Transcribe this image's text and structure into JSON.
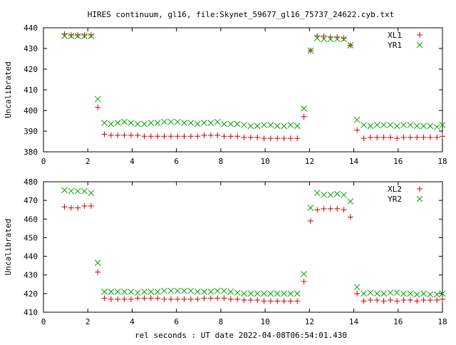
{
  "title": "HIRES continuum, gl16, file:Skynet_59677_gl16_75737_24622.cyb.txt",
  "xlabel": "rel seconds : UT date 2022-04-08T06:54:01.430",
  "colors": {
    "xl": "#d00000",
    "yr": "#00a000"
  },
  "chart_data": [
    {
      "type": "scatter",
      "ylabel": "Uncalibrated",
      "xlim": [
        0,
        18
      ],
      "ylim": [
        380,
        440
      ],
      "xticks": [
        0,
        2,
        4,
        6,
        8,
        10,
        12,
        14,
        16,
        18
      ],
      "yticks": [
        380,
        390,
        400,
        410,
        420,
        430,
        440
      ],
      "legend_position": "top-right",
      "series": [
        {
          "name": "XL1",
          "marker": "plus",
          "color": "#d00000",
          "points": [
            [
              0.95,
              437
            ],
            [
              1.25,
              436.5
            ],
            [
              1.55,
              436.5
            ],
            [
              1.85,
              436.5
            ],
            [
              2.15,
              436.5
            ],
            [
              2.45,
              401.5
            ],
            [
              2.75,
              388.5
            ],
            [
              3.05,
              388
            ],
            [
              3.35,
              388
            ],
            [
              3.65,
              388
            ],
            [
              3.95,
              388
            ],
            [
              4.25,
              388
            ],
            [
              4.55,
              387.5
            ],
            [
              4.85,
              387.5
            ],
            [
              5.15,
              387.5
            ],
            [
              5.45,
              387.5
            ],
            [
              5.75,
              387.5
            ],
            [
              6.05,
              387.5
            ],
            [
              6.35,
              387.5
            ],
            [
              6.65,
              387.5
            ],
            [
              6.95,
              387.5
            ],
            [
              7.25,
              388
            ],
            [
              7.55,
              388
            ],
            [
              7.85,
              388
            ],
            [
              8.15,
              387.5
            ],
            [
              8.45,
              387.5
            ],
            [
              8.75,
              387.5
            ],
            [
              9.05,
              387
            ],
            [
              9.35,
              387
            ],
            [
              9.65,
              387
            ],
            [
              9.95,
              386.5
            ],
            [
              10.25,
              386.5
            ],
            [
              10.55,
              386.5
            ],
            [
              10.85,
              386.5
            ],
            [
              11.15,
              386.5
            ],
            [
              11.45,
              386.5
            ],
            [
              11.75,
              397
            ],
            [
              12.05,
              429
            ],
            [
              12.35,
              436
            ],
            [
              12.65,
              436
            ],
            [
              12.95,
              435.5
            ],
            [
              13.25,
              435.5
            ],
            [
              13.55,
              435
            ],
            [
              13.85,
              431.5
            ],
            [
              14.15,
              390.5
            ],
            [
              14.45,
              386.5
            ],
            [
              14.75,
              387
            ],
            [
              15.05,
              387
            ],
            [
              15.35,
              387
            ],
            [
              15.65,
              387
            ],
            [
              15.95,
              386.5
            ],
            [
              16.25,
              387
            ],
            [
              16.55,
              387
            ],
            [
              16.85,
              387
            ],
            [
              17.15,
              387
            ],
            [
              17.45,
              387
            ],
            [
              17.75,
              387
            ],
            [
              18.0,
              387.5
            ]
          ]
        },
        {
          "name": "YR1",
          "marker": "cross",
          "color": "#00a000",
          "points": [
            [
              0.95,
              436
            ],
            [
              1.25,
              436
            ],
            [
              1.55,
              436
            ],
            [
              1.85,
              436
            ],
            [
              2.15,
              436
            ],
            [
              2.45,
              405.5
            ],
            [
              2.75,
              394
            ],
            [
              3.05,
              393.5
            ],
            [
              3.35,
              394
            ],
            [
              3.65,
              394.5
            ],
            [
              3.95,
              394
            ],
            [
              4.25,
              393.5
            ],
            [
              4.55,
              393.5
            ],
            [
              4.85,
              394
            ],
            [
              5.15,
              394
            ],
            [
              5.45,
              394.5
            ],
            [
              5.75,
              394.5
            ],
            [
              6.05,
              394.5
            ],
            [
              6.35,
              394
            ],
            [
              6.65,
              394
            ],
            [
              6.95,
              393.5
            ],
            [
              7.25,
              394
            ],
            [
              7.55,
              394
            ],
            [
              7.85,
              394.5
            ],
            [
              8.15,
              393.5
            ],
            [
              8.45,
              393.5
            ],
            [
              8.75,
              393.5
            ],
            [
              9.05,
              393
            ],
            [
              9.35,
              392.5
            ],
            [
              9.65,
              392.5
            ],
            [
              9.95,
              393
            ],
            [
              10.25,
              393
            ],
            [
              10.55,
              392.5
            ],
            [
              10.85,
              392.5
            ],
            [
              11.15,
              393
            ],
            [
              11.45,
              392.5
            ],
            [
              11.75,
              401
            ],
            [
              12.05,
              429
            ],
            [
              12.35,
              435
            ],
            [
              12.65,
              434.5
            ],
            [
              12.95,
              434.5
            ],
            [
              13.25,
              434.5
            ],
            [
              13.55,
              434.5
            ],
            [
              13.85,
              431.5
            ],
            [
              14.15,
              395.5
            ],
            [
              14.45,
              393
            ],
            [
              14.75,
              392.5
            ],
            [
              15.05,
              393
            ],
            [
              15.35,
              393
            ],
            [
              15.65,
              393
            ],
            [
              15.95,
              392.5
            ],
            [
              16.25,
              393
            ],
            [
              16.55,
              393
            ],
            [
              16.85,
              392.5
            ],
            [
              17.15,
              392.5
            ],
            [
              17.45,
              392.5
            ],
            [
              17.75,
              392
            ],
            [
              18.0,
              393
            ]
          ]
        }
      ]
    },
    {
      "type": "scatter",
      "ylabel": "Uncalibrated",
      "xlim": [
        0,
        18
      ],
      "ylim": [
        410,
        480
      ],
      "xticks": [
        0,
        2,
        4,
        6,
        8,
        10,
        12,
        14,
        16,
        18
      ],
      "yticks": [
        410,
        420,
        430,
        440,
        450,
        460,
        470,
        480
      ],
      "legend_position": "top-right",
      "series": [
        {
          "name": "XL2",
          "marker": "plus",
          "color": "#d00000",
          "points": [
            [
              0.95,
              466.5
            ],
            [
              1.25,
              466
            ],
            [
              1.55,
              466
            ],
            [
              1.85,
              467
            ],
            [
              2.15,
              467
            ],
            [
              2.45,
              431.5
            ],
            [
              2.75,
              417.5
            ],
            [
              3.05,
              417
            ],
            [
              3.35,
              417
            ],
            [
              3.65,
              417
            ],
            [
              3.95,
              417
            ],
            [
              4.25,
              417.5
            ],
            [
              4.55,
              417.5
            ],
            [
              4.85,
              417.5
            ],
            [
              5.15,
              417.5
            ],
            [
              5.45,
              417
            ],
            [
              5.75,
              417
            ],
            [
              6.05,
              417
            ],
            [
              6.35,
              417
            ],
            [
              6.65,
              417
            ],
            [
              6.95,
              417
            ],
            [
              7.25,
              417.5
            ],
            [
              7.55,
              417.5
            ],
            [
              7.85,
              417.5
            ],
            [
              8.15,
              417.5
            ],
            [
              8.45,
              417
            ],
            [
              8.75,
              417
            ],
            [
              9.05,
              416.5
            ],
            [
              9.35,
              416.5
            ],
            [
              9.65,
              416.5
            ],
            [
              9.95,
              416
            ],
            [
              10.25,
              416
            ],
            [
              10.55,
              416
            ],
            [
              10.85,
              416
            ],
            [
              11.15,
              416
            ],
            [
              11.45,
              416
            ],
            [
              11.75,
              426.5
            ],
            [
              12.05,
              459
            ],
            [
              12.35,
              465
            ],
            [
              12.65,
              465.5
            ],
            [
              12.95,
              465.5
            ],
            [
              13.25,
              465.5
            ],
            [
              13.55,
              465
            ],
            [
              13.85,
              461
            ],
            [
              14.15,
              420
            ],
            [
              14.45,
              416
            ],
            [
              14.75,
              416.5
            ],
            [
              15.05,
              416.5
            ],
            [
              15.35,
              416
            ],
            [
              15.65,
              416.5
            ],
            [
              15.95,
              416
            ],
            [
              16.25,
              416.5
            ],
            [
              16.55,
              416.5
            ],
            [
              16.85,
              416
            ],
            [
              17.15,
              416.5
            ],
            [
              17.45,
              416.5
            ],
            [
              17.75,
              416.5
            ],
            [
              18.0,
              417
            ]
          ]
        },
        {
          "name": "YR2",
          "marker": "cross",
          "color": "#00a000",
          "points": [
            [
              0.95,
              475.5
            ],
            [
              1.25,
              475
            ],
            [
              1.55,
              475
            ],
            [
              1.85,
              475
            ],
            [
              2.15,
              474
            ],
            [
              2.45,
              436.5
            ],
            [
              2.75,
              421
            ],
            [
              3.05,
              421
            ],
            [
              3.35,
              421
            ],
            [
              3.65,
              421
            ],
            [
              3.95,
              421
            ],
            [
              4.25,
              420.5
            ],
            [
              4.55,
              421
            ],
            [
              4.85,
              421
            ],
            [
              5.15,
              421
            ],
            [
              5.45,
              421.5
            ],
            [
              5.75,
              421.5
            ],
            [
              6.05,
              421.5
            ],
            [
              6.35,
              421.5
            ],
            [
              6.65,
              421.5
            ],
            [
              6.95,
              421
            ],
            [
              7.25,
              421
            ],
            [
              7.55,
              421
            ],
            [
              7.85,
              421.5
            ],
            [
              8.15,
              421.5
            ],
            [
              8.45,
              421
            ],
            [
              8.75,
              420.5
            ],
            [
              9.05,
              420
            ],
            [
              9.35,
              420
            ],
            [
              9.65,
              420
            ],
            [
              9.95,
              420
            ],
            [
              10.25,
              420
            ],
            [
              10.55,
              420
            ],
            [
              10.85,
              420
            ],
            [
              11.15,
              420
            ],
            [
              11.45,
              420
            ],
            [
              11.75,
              430.5
            ],
            [
              12.05,
              466
            ],
            [
              12.35,
              474
            ],
            [
              12.65,
              473
            ],
            [
              12.95,
              473
            ],
            [
              13.25,
              473.5
            ],
            [
              13.55,
              473
            ],
            [
              13.85,
              469.5
            ],
            [
              14.15,
              423.5
            ],
            [
              14.45,
              420
            ],
            [
              14.75,
              420.5
            ],
            [
              15.05,
              420
            ],
            [
              15.35,
              420
            ],
            [
              15.65,
              420.5
            ],
            [
              15.95,
              420.5
            ],
            [
              16.25,
              420
            ],
            [
              16.55,
              420
            ],
            [
              16.85,
              419.5
            ],
            [
              17.15,
              420
            ],
            [
              17.45,
              419.5
            ],
            [
              17.75,
              419.5
            ],
            [
              18.0,
              420
            ]
          ]
        }
      ]
    }
  ]
}
